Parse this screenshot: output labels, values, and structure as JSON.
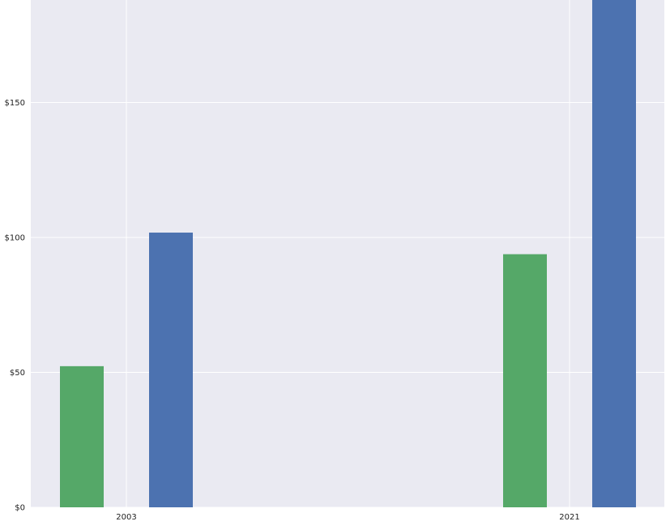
{
  "chart_data": {
    "type": "bar",
    "title": "",
    "xlabel": "",
    "ylabel": "",
    "categories": [
      "2003",
      "2021"
    ],
    "series": [
      {
        "color": "#55a868",
        "values": [
          52.3,
          93.8
        ]
      },
      {
        "color": "#4c72b0",
        "values": [
          101.8,
          195.0
        ]
      }
    ],
    "ylim": [
      0,
      188
    ],
    "yticks": [
      0,
      50,
      100,
      150
    ],
    "ytick_labels": [
      "$0",
      "$50",
      "$100",
      "$150"
    ],
    "grid": true,
    "legend": "none",
    "background_color": "#eaeaf2",
    "grid_color": "#ffffff"
  }
}
